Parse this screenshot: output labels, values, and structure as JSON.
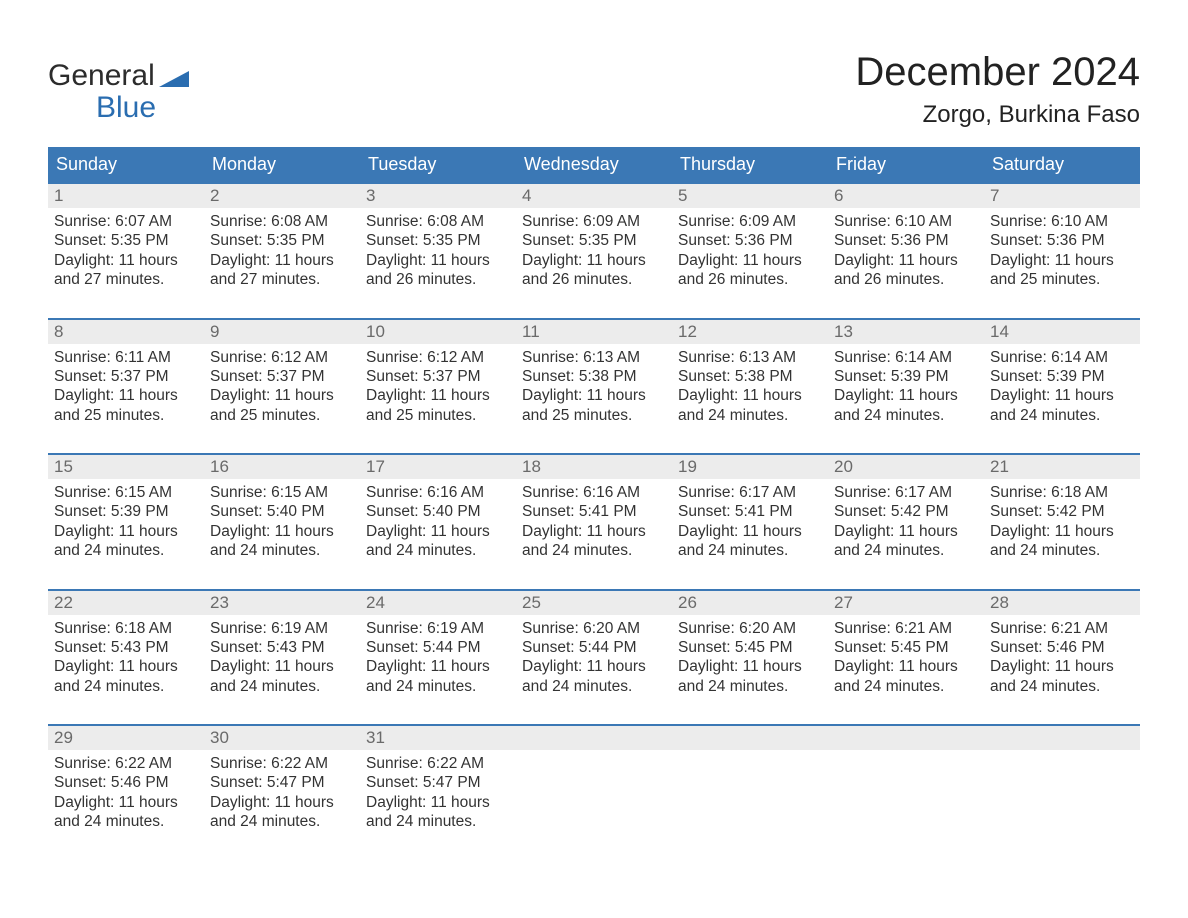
{
  "brand": {
    "line1": "General",
    "line2": "Blue"
  },
  "title": "December 2024",
  "location": "Zorgo, Burkina Faso",
  "colors": {
    "header_bg": "#3b78b5",
    "header_text": "#ffffff",
    "daynum_bg": "#ececec",
    "daynum_text": "#6a6a6a",
    "body_text": "#333333",
    "accent_blue": "#2a6db0",
    "page_bg": "#ffffff"
  },
  "day_names": [
    "Sunday",
    "Monday",
    "Tuesday",
    "Wednesday",
    "Thursday",
    "Friday",
    "Saturday"
  ],
  "labels": {
    "sunrise_prefix": "Sunrise: ",
    "sunset_prefix": "Sunset: ",
    "daylight_prefix": "Daylight: ",
    "and_word": "and ",
    "minutes_suffix": " minutes."
  },
  "weeks": [
    [
      {
        "n": "1",
        "sunrise": "6:07 AM",
        "sunset": "5:35 PM",
        "dh": "11 hours",
        "dm": "27"
      },
      {
        "n": "2",
        "sunrise": "6:08 AM",
        "sunset": "5:35 PM",
        "dh": "11 hours",
        "dm": "27"
      },
      {
        "n": "3",
        "sunrise": "6:08 AM",
        "sunset": "5:35 PM",
        "dh": "11 hours",
        "dm": "26"
      },
      {
        "n": "4",
        "sunrise": "6:09 AM",
        "sunset": "5:35 PM",
        "dh": "11 hours",
        "dm": "26"
      },
      {
        "n": "5",
        "sunrise": "6:09 AM",
        "sunset": "5:36 PM",
        "dh": "11 hours",
        "dm": "26"
      },
      {
        "n": "6",
        "sunrise": "6:10 AM",
        "sunset": "5:36 PM",
        "dh": "11 hours",
        "dm": "26"
      },
      {
        "n": "7",
        "sunrise": "6:10 AM",
        "sunset": "5:36 PM",
        "dh": "11 hours",
        "dm": "25"
      }
    ],
    [
      {
        "n": "8",
        "sunrise": "6:11 AM",
        "sunset": "5:37 PM",
        "dh": "11 hours",
        "dm": "25"
      },
      {
        "n": "9",
        "sunrise": "6:12 AM",
        "sunset": "5:37 PM",
        "dh": "11 hours",
        "dm": "25"
      },
      {
        "n": "10",
        "sunrise": "6:12 AM",
        "sunset": "5:37 PM",
        "dh": "11 hours",
        "dm": "25"
      },
      {
        "n": "11",
        "sunrise": "6:13 AM",
        "sunset": "5:38 PM",
        "dh": "11 hours",
        "dm": "25"
      },
      {
        "n": "12",
        "sunrise": "6:13 AM",
        "sunset": "5:38 PM",
        "dh": "11 hours",
        "dm": "24"
      },
      {
        "n": "13",
        "sunrise": "6:14 AM",
        "sunset": "5:39 PM",
        "dh": "11 hours",
        "dm": "24"
      },
      {
        "n": "14",
        "sunrise": "6:14 AM",
        "sunset": "5:39 PM",
        "dh": "11 hours",
        "dm": "24"
      }
    ],
    [
      {
        "n": "15",
        "sunrise": "6:15 AM",
        "sunset": "5:39 PM",
        "dh": "11 hours",
        "dm": "24"
      },
      {
        "n": "16",
        "sunrise": "6:15 AM",
        "sunset": "5:40 PM",
        "dh": "11 hours",
        "dm": "24"
      },
      {
        "n": "17",
        "sunrise": "6:16 AM",
        "sunset": "5:40 PM",
        "dh": "11 hours",
        "dm": "24"
      },
      {
        "n": "18",
        "sunrise": "6:16 AM",
        "sunset": "5:41 PM",
        "dh": "11 hours",
        "dm": "24"
      },
      {
        "n": "19",
        "sunrise": "6:17 AM",
        "sunset": "5:41 PM",
        "dh": "11 hours",
        "dm": "24"
      },
      {
        "n": "20",
        "sunrise": "6:17 AM",
        "sunset": "5:42 PM",
        "dh": "11 hours",
        "dm": "24"
      },
      {
        "n": "21",
        "sunrise": "6:18 AM",
        "sunset": "5:42 PM",
        "dh": "11 hours",
        "dm": "24"
      }
    ],
    [
      {
        "n": "22",
        "sunrise": "6:18 AM",
        "sunset": "5:43 PM",
        "dh": "11 hours",
        "dm": "24"
      },
      {
        "n": "23",
        "sunrise": "6:19 AM",
        "sunset": "5:43 PM",
        "dh": "11 hours",
        "dm": "24"
      },
      {
        "n": "24",
        "sunrise": "6:19 AM",
        "sunset": "5:44 PM",
        "dh": "11 hours",
        "dm": "24"
      },
      {
        "n": "25",
        "sunrise": "6:20 AM",
        "sunset": "5:44 PM",
        "dh": "11 hours",
        "dm": "24"
      },
      {
        "n": "26",
        "sunrise": "6:20 AM",
        "sunset": "5:45 PM",
        "dh": "11 hours",
        "dm": "24"
      },
      {
        "n": "27",
        "sunrise": "6:21 AM",
        "sunset": "5:45 PM",
        "dh": "11 hours",
        "dm": "24"
      },
      {
        "n": "28",
        "sunrise": "6:21 AM",
        "sunset": "5:46 PM",
        "dh": "11 hours",
        "dm": "24"
      }
    ],
    [
      {
        "n": "29",
        "sunrise": "6:22 AM",
        "sunset": "5:46 PM",
        "dh": "11 hours",
        "dm": "24"
      },
      {
        "n": "30",
        "sunrise": "6:22 AM",
        "sunset": "5:47 PM",
        "dh": "11 hours",
        "dm": "24"
      },
      {
        "n": "31",
        "sunrise": "6:22 AM",
        "sunset": "5:47 PM",
        "dh": "11 hours",
        "dm": "24"
      },
      null,
      null,
      null,
      null
    ]
  ]
}
